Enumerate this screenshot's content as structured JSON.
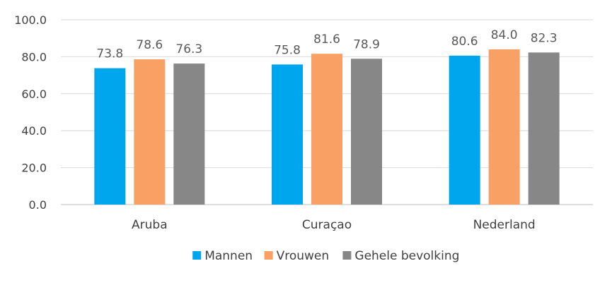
{
  "chart_data": {
    "type": "bar",
    "categories": [
      "Aruba",
      "Curaçao",
      "Nederland"
    ],
    "series": [
      {
        "name": "Mannen",
        "values": [
          73.8,
          75.8,
          80.6
        ],
        "color": "#00A6ED"
      },
      {
        "name": "Vrouwen",
        "values": [
          78.6,
          81.6,
          84.0
        ],
        "color": "#F9A064"
      },
      {
        "name": "Gehele bevolking",
        "values": [
          76.3,
          78.9,
          82.3
        ],
        "color": "#878787"
      }
    ],
    "ylim": [
      0,
      100
    ],
    "yticks": [
      "0.0",
      "20.0",
      "40.0",
      "60.0",
      "80.0",
      "100.0"
    ],
    "grid": true,
    "legend": "bottom"
  }
}
